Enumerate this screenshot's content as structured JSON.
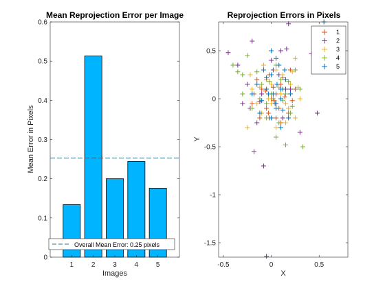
{
  "chart_data": [
    {
      "type": "bar",
      "title": "Mean Reprojection Error per Image",
      "xlabel": "Images",
      "ylabel": "Mean Error in Pixels",
      "categories": [
        "1",
        "2",
        "3",
        "4",
        "5"
      ],
      "values": [
        0.134,
        0.513,
        0.2,
        0.244,
        0.176
      ],
      "xlim": [
        0,
        6
      ],
      "ylim": [
        0,
        0.6
      ],
      "yticks": [
        "0",
        "0.1",
        "0.2",
        "0.3",
        "0.4",
        "0.5",
        "0.6"
      ],
      "bar_color": "#00b4ff",
      "mean_line": {
        "value": 0.253,
        "label": "Overall Mean Error: 0.25 pixels",
        "color": "#2f6f8f"
      },
      "legend_position": "bottom"
    },
    {
      "type": "scatter",
      "title": "Reprojection Errors in Pixels",
      "xlabel": "X",
      "ylabel": "Y",
      "xlim": [
        -0.55,
        0.8
      ],
      "ylim": [
        -1.65,
        0.8
      ],
      "xticks": [
        "-0.5",
        "0",
        "0.5"
      ],
      "yticks": [
        "-1.5",
        "-1",
        "-0.5",
        "0",
        "0.5"
      ],
      "legend_position": "top-right",
      "marker": "+",
      "series": [
        {
          "name": "1",
          "color": "#d95319",
          "points": [
            [
              -0.1,
              0.1
            ],
            [
              0.05,
              0.05
            ],
            [
              0.15,
              -0.05
            ],
            [
              -0.05,
              -0.1
            ],
            [
              0.1,
              0.15
            ],
            [
              -0.15,
              0.2
            ],
            [
              0.0,
              0.0
            ],
            [
              0.2,
              0.3
            ],
            [
              -0.2,
              -0.05
            ],
            [
              0.05,
              -0.2
            ],
            [
              0.12,
              0.22
            ],
            [
              -0.08,
              0.35
            ],
            [
              0.18,
              -0.15
            ],
            [
              -0.12,
              -0.2
            ],
            [
              0.02,
              0.12
            ],
            [
              0.08,
              -0.1
            ],
            [
              -0.02,
              0.25
            ],
            [
              0.25,
              0.1
            ],
            [
              -0.18,
              0.05
            ],
            [
              0.1,
              -0.25
            ],
            [
              0.03,
              -0.02
            ],
            [
              -0.06,
              0.08
            ],
            [
              0.14,
              0.02
            ],
            [
              0.22,
              -0.02
            ],
            [
              -0.03,
              -0.15
            ]
          ]
        },
        {
          "name": "2",
          "color": "#7e2f8e",
          "points": [
            [
              -0.08,
              -0.7
            ],
            [
              0.18,
              0.78
            ],
            [
              -0.45,
              0.48
            ],
            [
              0.42,
              0.47
            ],
            [
              0.48,
              -0.15
            ],
            [
              -0.35,
              0.35
            ],
            [
              -0.22,
              -0.1
            ],
            [
              0.1,
              0.5
            ],
            [
              -0.2,
              0.6
            ],
            [
              0.3,
              -0.35
            ],
            [
              0.16,
              0.52
            ],
            [
              -0.05,
              0.2
            ],
            [
              0.05,
              -0.05
            ],
            [
              -0.15,
              -0.25
            ],
            [
              0.2,
              0.1
            ],
            [
              -0.1,
              0.05
            ],
            [
              0.08,
              0.25
            ],
            [
              -0.25,
              0.15
            ],
            [
              0.12,
              -0.2
            ],
            [
              0.0,
              0.4
            ],
            [
              -0.12,
              -0.03
            ],
            [
              0.02,
              0.3
            ],
            [
              0.15,
              0.1
            ],
            [
              -0.02,
              -0.2
            ],
            [
              -0.3,
              -0.05
            ],
            [
              -0.05,
              -1.64
            ],
            [
              -0.18,
              -0.55
            ]
          ]
        },
        {
          "name": "3",
          "color": "#edb120",
          "points": [
            [
              -0.25,
              -0.3
            ],
            [
              0.05,
              0.3
            ],
            [
              0.25,
              0.42
            ],
            [
              -0.1,
              -0.15
            ],
            [
              0.15,
              -0.25
            ],
            [
              -0.2,
              0.1
            ],
            [
              0.1,
              0.05
            ],
            [
              0.3,
              0.0
            ],
            [
              0.0,
              -0.05
            ],
            [
              -0.05,
              0.2
            ],
            [
              0.2,
              0.15
            ],
            [
              -0.15,
              -0.05
            ],
            [
              0.05,
              -0.3
            ],
            [
              0.12,
              0.25
            ],
            [
              -0.08,
              0.35
            ],
            [
              0.18,
              -0.1
            ],
            [
              -0.22,
              0.25
            ],
            [
              0.08,
              0.12
            ],
            [
              0.25,
              -0.2
            ],
            [
              -0.03,
              0.0
            ],
            [
              0.0,
              0.15
            ],
            [
              0.22,
              0.28
            ],
            [
              -0.12,
              0.12
            ],
            [
              0.15,
              -0.05
            ],
            [
              0.28,
              0.12
            ]
          ]
        },
        {
          "name": "4",
          "color": "#77ac30",
          "points": [
            [
              -0.4,
              0.35
            ],
            [
              0.33,
              -0.5
            ],
            [
              0.15,
              -0.48
            ],
            [
              -0.3,
              0.25
            ],
            [
              -0.3,
              0.05
            ],
            [
              0.25,
              0.3
            ],
            [
              0.05,
              -0.4
            ],
            [
              -0.15,
              0.28
            ],
            [
              0.1,
              0.2
            ],
            [
              -0.05,
              -0.05
            ],
            [
              0.2,
              -0.15
            ],
            [
              -0.1,
              0.15
            ],
            [
              0.0,
              0.05
            ],
            [
              0.15,
              0.05
            ],
            [
              -0.2,
              -0.1
            ],
            [
              0.08,
              -0.25
            ],
            [
              -0.25,
              0.45
            ],
            [
              0.05,
              0.35
            ],
            [
              0.3,
              0.1
            ],
            [
              -0.12,
              0.0
            ],
            [
              0.12,
              -0.02
            ],
            [
              -0.35,
              0.28
            ],
            [
              -0.02,
              0.18
            ],
            [
              0.22,
              -0.08
            ],
            [
              -0.05,
              -0.2
            ],
            [
              0.02,
              0.0
            ],
            [
              0.18,
              0.18
            ]
          ]
        },
        {
          "name": "5",
          "color": "#0072bd",
          "points": [
            [
              0.55,
              0.8
            ],
            [
              0.05,
              0.42
            ],
            [
              0.0,
              0.25
            ],
            [
              -0.05,
              0.1
            ],
            [
              0.1,
              0.0
            ],
            [
              0.15,
              0.2
            ],
            [
              -0.1,
              -0.02
            ],
            [
              0.05,
              -0.1
            ],
            [
              0.12,
              0.1
            ],
            [
              -0.15,
              0.15
            ],
            [
              0.0,
              -0.2
            ],
            [
              0.08,
              0.35
            ],
            [
              0.2,
              0.05
            ],
            [
              -0.08,
              0.3
            ],
            [
              0.1,
              -0.3
            ],
            [
              0.02,
              0.05
            ],
            [
              -0.12,
              -0.15
            ],
            [
              0.18,
              -0.2
            ],
            [
              0.06,
              0.15
            ],
            [
              -0.03,
              0.05
            ],
            [
              0.14,
              0.3
            ],
            [
              -0.2,
              0.05
            ],
            [
              0.04,
              -0.05
            ],
            [
              0.1,
              0.1
            ],
            [
              -0.05,
              0.22
            ],
            [
              0.12,
              -0.12
            ],
            [
              0.0,
              0.5
            ]
          ]
        }
      ]
    }
  ]
}
